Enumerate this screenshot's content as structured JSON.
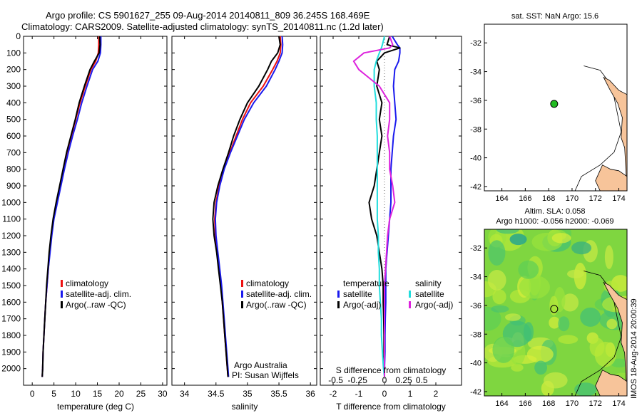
{
  "header": {
    "line1": "Argo profile: CS 5901627_255 09-Aug-2014 20140811_809 36.245S 168.469E",
    "line2": "Climatology: CARS2009. Satellite-adjusted climatology: synTS_20140811.nc (1.2d later)"
  },
  "credit": {
    "org": "Argo Australia",
    "pi": "PI: Susan Wijffels"
  },
  "watermark": "IMOS 18-Aug-2014 20:00:39",
  "colors": {
    "climatology": "#ee1111",
    "satellite": "#1a1aee",
    "argo": "#000000",
    "salinity_satellite": "#22dddd",
    "salinity_argo": "#dd22dd",
    "land": "#f7c49a",
    "sst_marker": "#22bb22"
  },
  "chart_data": [
    {
      "type": "line",
      "name": "temperature-profile",
      "xlabel": "temperature (deg C)",
      "ylabel": "",
      "xlim": [
        -2,
        31
      ],
      "ylim": [
        2100,
        0
      ],
      "xticks": [
        0,
        5,
        10,
        15,
        20,
        25,
        30
      ],
      "yticks": [
        0,
        100,
        200,
        300,
        400,
        500,
        600,
        700,
        800,
        900,
        1000,
        1100,
        1200,
        1300,
        1400,
        1500,
        1600,
        1700,
        1800,
        1900,
        2000
      ],
      "depth": [
        0,
        50,
        100,
        150,
        200,
        300,
        400,
        500,
        600,
        700,
        800,
        900,
        1000,
        1100,
        1200,
        1300,
        1400,
        1500,
        1600,
        1700,
        1800,
        1900,
        2000,
        2050
      ],
      "series": [
        {
          "name": "climatology",
          "values": [
            15.3,
            15.3,
            15.2,
            14.6,
            13.5,
            12.2,
            11.0,
            10.0,
            9.0,
            8.0,
            7.2,
            6.4,
            5.6,
            4.9,
            4.4,
            4.0,
            3.7,
            3.4,
            3.1,
            2.9,
            2.7,
            2.5,
            2.4,
            2.3
          ]
        },
        {
          "name": "satellite-adj. clim.",
          "values": [
            15.8,
            15.8,
            15.7,
            15.1,
            13.9,
            12.6,
            11.4,
            10.4,
            9.3,
            8.3,
            7.4,
            6.6,
            5.8,
            5.0,
            4.5,
            4.1,
            3.7,
            3.4,
            3.1,
            2.9,
            2.7,
            2.5,
            2.4,
            2.3
          ]
        },
        {
          "name": "Argo(..raw -QC)",
          "values": [
            15.5,
            15.6,
            15.4,
            14.3,
            13.3,
            12.0,
            10.8,
            9.9,
            8.9,
            7.9,
            7.1,
            6.3,
            5.5,
            4.8,
            4.3,
            3.9,
            3.6,
            3.3,
            3.1,
            2.9,
            2.7,
            2.5,
            2.4,
            2.3
          ]
        }
      ],
      "legend": {
        "placement": "bottom-right",
        "entries": [
          "climatology",
          "satellite-adj. clim.",
          "Argo(..raw -QC)"
        ]
      }
    },
    {
      "type": "line",
      "name": "salinity-profile",
      "xlabel": "salinity",
      "ylabel": "",
      "xlim": [
        33.8,
        36.1
      ],
      "ylim": [
        2100,
        0
      ],
      "xticks": [
        34,
        34.5,
        35,
        35.5,
        36
      ],
      "xticklabels": [
        "34",
        "34.5",
        "35",
        "35.5",
        "36"
      ],
      "depth": [
        0,
        50,
        100,
        150,
        200,
        300,
        400,
        500,
        600,
        700,
        800,
        900,
        1000,
        1100,
        1200,
        1300,
        1400,
        1500,
        1600,
        1700,
        1800,
        1900,
        2000,
        2050
      ],
      "series": [
        {
          "name": "climatology",
          "values": [
            35.52,
            35.53,
            35.52,
            35.47,
            35.4,
            35.25,
            35.05,
            34.92,
            34.82,
            34.72,
            34.62,
            34.55,
            34.5,
            34.48,
            34.49,
            34.52,
            34.55,
            34.58,
            34.6,
            34.62,
            34.64,
            34.66,
            34.68,
            34.69
          ]
        },
        {
          "name": "satellite-adj. clim.",
          "values": [
            35.55,
            35.56,
            35.55,
            35.5,
            35.44,
            35.3,
            35.1,
            34.95,
            34.84,
            34.73,
            34.63,
            34.56,
            34.51,
            34.49,
            34.5,
            34.53,
            34.56,
            34.59,
            34.61,
            34.63,
            34.65,
            34.67,
            34.69,
            34.7
          ]
        },
        {
          "name": "Argo(..raw -QC)",
          "values": [
            35.5,
            35.52,
            35.48,
            35.38,
            35.32,
            35.18,
            35.0,
            34.88,
            34.78,
            34.7,
            34.61,
            34.53,
            34.47,
            34.45,
            34.47,
            34.51,
            34.54,
            34.57,
            34.6,
            34.62,
            34.64,
            34.66,
            34.68,
            34.69
          ]
        }
      ],
      "legend": {
        "placement": "bottom-right",
        "entries": [
          "climatology",
          "satellite-adj. clim.",
          "Argo(..raw -QC)"
        ]
      }
    },
    {
      "type": "line",
      "name": "difference-profile",
      "xlabel": "T difference from climatology",
      "xlabel_top": "S difference from climatology",
      "xlim": [
        -2.5,
        3.0
      ],
      "ylim": [
        2100,
        0
      ],
      "xticks": [
        -2,
        -1,
        0,
        1,
        2
      ],
      "sticks": [
        "-0.5",
        "-0.25",
        "0",
        "0.25",
        "0.5"
      ],
      "depth": [
        0,
        50,
        70,
        100,
        150,
        200,
        300,
        400,
        500,
        600,
        700,
        800,
        900,
        1000,
        1100,
        1200,
        1300,
        1400,
        1500,
        1600,
        1700,
        1800,
        1900,
        2000,
        2050
      ],
      "series": [
        {
          "name": "temperature satellite",
          "values": [
            0.3,
            0.5,
            0.6,
            0.6,
            0.55,
            0.4,
            0.35,
            0.4,
            0.45,
            0.35,
            0.3,
            0.25,
            0.25,
            0.25,
            0.2,
            0.15,
            0.1,
            0.05,
            0.05,
            0.05,
            0.03,
            0.02,
            0.02,
            0.0,
            0.0
          ]
        },
        {
          "name": "temperature Argo(-adj)",
          "values": [
            0.2,
            0.1,
            0.6,
            0.0,
            -0.3,
            -0.2,
            -0.3,
            -0.1,
            -0.2,
            -0.1,
            -0.2,
            -0.3,
            -0.4,
            -0.6,
            -0.5,
            -0.3,
            -0.2,
            -0.1,
            -0.05,
            -0.05,
            -0.03,
            -0.02,
            -0.02,
            0.0,
            0.0
          ]
        },
        {
          "name": "salinity satellite",
          "values": [
            0.0,
            -0.02,
            -0.03,
            -0.05,
            -0.08,
            -0.1,
            -0.1,
            -0.08,
            -0.08,
            -0.07,
            -0.07,
            -0.07,
            -0.07,
            -0.07,
            -0.07,
            -0.06,
            -0.06,
            -0.05,
            -0.05,
            -0.04,
            -0.03,
            -0.03,
            -0.02,
            -0.01,
            0.0
          ]
        },
        {
          "name": "salinity Argo(-adj)",
          "values": [
            0.05,
            0.08,
            0.05,
            -0.2,
            -0.3,
            -0.25,
            -0.05,
            0.05,
            0.05,
            0.03,
            0.05,
            0.05,
            0.08,
            0.1,
            0.05,
            0.03,
            0.02,
            0.01,
            0.0,
            0.0,
            0.0,
            0.0,
            0.0,
            0.0,
            0.0
          ]
        }
      ],
      "legend": {
        "placement": "bottom",
        "headers": [
          "temperature",
          "salinity"
        ],
        "entries": [
          "satellite",
          "Argo(-adj)",
          "satellite",
          "Argo(-adj)"
        ]
      }
    },
    {
      "type": "map",
      "name": "sst-map",
      "title": "sat. SST: NaN Argo: 15.6",
      "xlim": [
        162.5,
        174.7
      ],
      "ylim": [
        -42.3,
        -30.7
      ],
      "xticks": [
        164,
        166,
        168,
        170,
        172,
        174
      ],
      "yticks": [
        -32,
        -34,
        -36,
        -38,
        -40,
        -42
      ],
      "float_position": {
        "lon": 168.469,
        "lat": -36.245
      }
    },
    {
      "type": "map",
      "name": "sla-map",
      "title_line1": "Altim. SLA: 0.058",
      "title_line2": "Argo h1000: -0.056 h2000: -0.069",
      "xlim": [
        162.5,
        174.7
      ],
      "ylim": [
        -42.3,
        -30.7
      ],
      "xticks": [
        164,
        166,
        168,
        170,
        172,
        174
      ],
      "yticks": [
        -32,
        -34,
        -36,
        -38,
        -40,
        -42
      ],
      "float_position": {
        "lon": 168.469,
        "lat": -36.245
      }
    }
  ]
}
